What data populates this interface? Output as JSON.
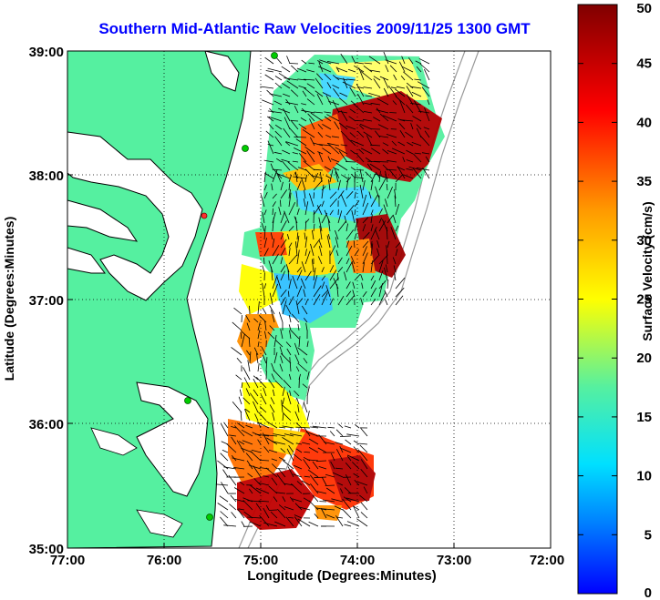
{
  "title": "Southern Mid-Atlantic Raw Velocities 2009/11/25 1300 GMT",
  "xlabel": "Longitude (Degrees:Minutes)",
  "ylabel": "Latitude (Degrees:Minutes)",
  "x_ticks": [
    "77:00",
    "76:00",
    "75:00",
    "74:00",
    "73:00",
    "72:00"
  ],
  "y_ticks": [
    "39:00",
    "38:00",
    "37:00",
    "36:00",
    "35:00"
  ],
  "colorbar": {
    "label": "Surface Velocity (cm/s)",
    "ticks": [
      "50",
      "45",
      "40",
      "35",
      "30",
      "25",
      "20",
      "15",
      "10",
      "5",
      "0"
    ],
    "range": [
      0,
      50
    ],
    "colors": [
      "#0000ff",
      "#00bfff",
      "#55f0a0",
      "#ffff00",
      "#ff8000",
      "#ff0000",
      "#800000"
    ]
  },
  "land_color": "#55f0a0",
  "ocean_color": "#ffffff",
  "grid": "dotted",
  "stations_color": "#00cc00"
}
